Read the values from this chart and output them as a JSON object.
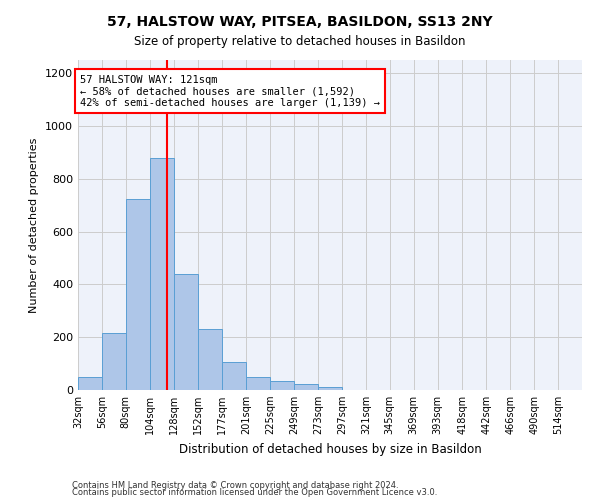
{
  "title": "57, HALSTOW WAY, PITSEA, BASILDON, SS13 2NY",
  "subtitle": "Size of property relative to detached houses in Basildon",
  "xlabel": "Distribution of detached houses by size in Basildon",
  "ylabel": "Number of detached properties",
  "bin_labels": [
    "32sqm",
    "56sqm",
    "80sqm",
    "104sqm",
    "128sqm",
    "152sqm",
    "177sqm",
    "201sqm",
    "225sqm",
    "249sqm",
    "273sqm",
    "297sqm",
    "321sqm",
    "345sqm",
    "369sqm",
    "393sqm",
    "418sqm",
    "442sqm",
    "466sqm",
    "490sqm",
    "514sqm"
  ],
  "bar_values": [
    50,
    215,
    725,
    880,
    440,
    230,
    105,
    48,
    35,
    22,
    10,
    0,
    0,
    0,
    0,
    0,
    0,
    0,
    0,
    0,
    0
  ],
  "bar_color": "#aec6e8",
  "bar_edge_color": "#5a9fd4",
  "grid_color": "#cccccc",
  "background_color": "#eef2fa",
  "annotation_line_color": "red",
  "annotation_text_line1": "57 HALSTOW WAY: 121sqm",
  "annotation_text_line2": "← 58% of detached houses are smaller (1,592)",
  "annotation_text_line3": "42% of semi-detached houses are larger (1,139) →",
  "annotation_box_color": "red",
  "property_size": 121,
  "ylim": [
    0,
    1250
  ],
  "yticks": [
    0,
    200,
    400,
    600,
    800,
    1000,
    1200
  ],
  "footnote1": "Contains HM Land Registry data © Crown copyright and database right 2024.",
  "footnote2": "Contains public sector information licensed under the Open Government Licence v3.0.",
  "bin_edges": [
    32,
    56,
    80,
    104,
    128,
    152,
    177,
    201,
    225,
    249,
    273,
    297,
    321,
    345,
    369,
    393,
    418,
    442,
    466,
    490,
    514,
    538
  ]
}
